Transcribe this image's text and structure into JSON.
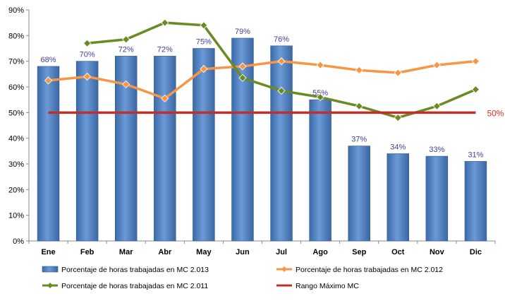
{
  "chart_data": {
    "type": "bar",
    "categories": [
      "Ene",
      "Feb",
      "Mar",
      "Abr",
      "May",
      "Jun",
      "Jul",
      "Ago",
      "Sep",
      "Oct",
      "Nov",
      "Dic"
    ],
    "ylim": [
      0,
      90
    ],
    "yticks": [
      "0%",
      "10%",
      "20%",
      "30%",
      "40%",
      "50%",
      "60%",
      "70%",
      "80%",
      "90%"
    ],
    "grid": false,
    "legend_position": "bottom",
    "series": [
      {
        "name": "Porcentaje de horas trabajadas en MC 2.013",
        "type": "bar",
        "color": "#4f81bd",
        "values": [
          68,
          70,
          72,
          72,
          75,
          79,
          76,
          55,
          37,
          34,
          33,
          31
        ],
        "labels": [
          "68%",
          "70%",
          "72%",
          "72%",
          "75%",
          "79%",
          "76%",
          "55%",
          "37%",
          "34%",
          "33%",
          "31%"
        ]
      },
      {
        "name": "Porcentaje de horas trabajadas en MC 2.012",
        "type": "line",
        "color": "#f79646",
        "values": [
          62.5,
          64,
          61,
          55.5,
          67,
          68,
          70,
          68.5,
          66.5,
          65.5,
          68.5,
          70
        ]
      },
      {
        "name": "Porcentaje de horas trabajadas en MC 2.011",
        "type": "line",
        "color": "#6a8a22",
        "values": [
          null,
          77,
          78.5,
          85,
          84,
          63.5,
          58.5,
          56,
          52.5,
          48,
          52.5,
          59
        ]
      },
      {
        "name": "Rango Máximo MC",
        "type": "line",
        "color": "#c0302a",
        "values": [
          50,
          50,
          50,
          50,
          50,
          50,
          50,
          50,
          50,
          50,
          50,
          50
        ],
        "end_label": "50%"
      }
    ]
  }
}
